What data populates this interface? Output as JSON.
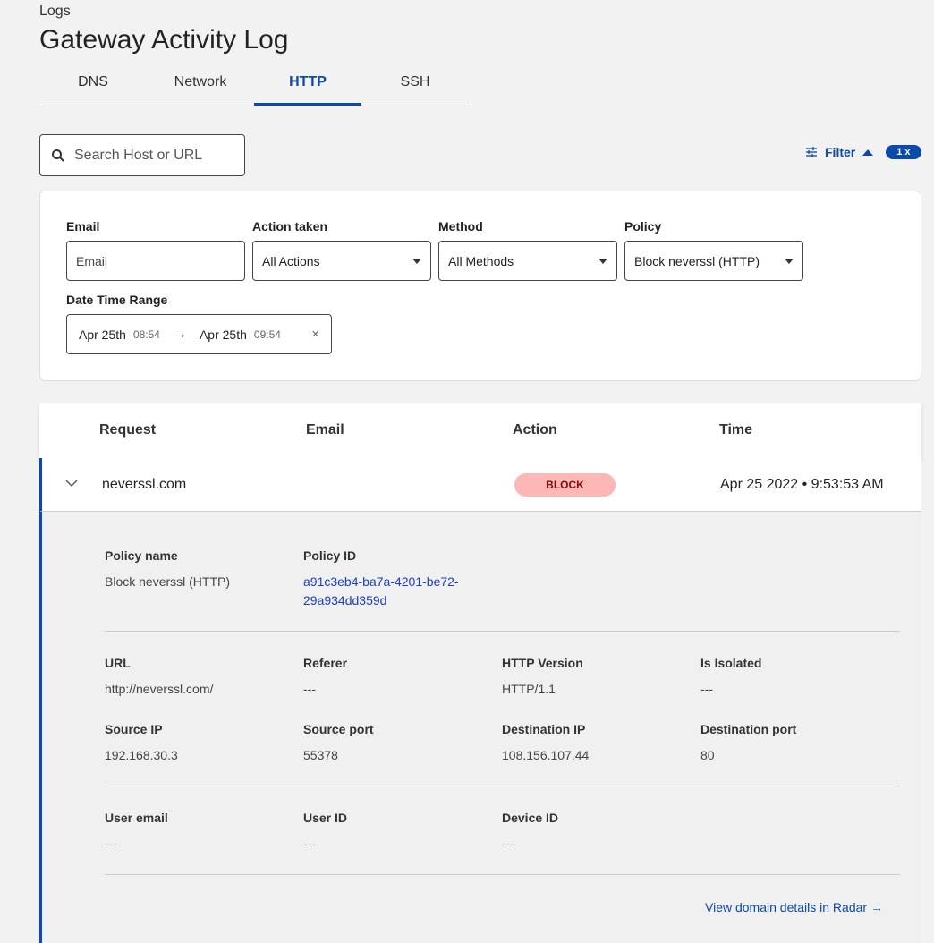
{
  "breadcrumb": "Logs",
  "title": "Gateway Activity Log",
  "tabs": [
    {
      "label": "DNS"
    },
    {
      "label": "Network"
    },
    {
      "label": "HTTP",
      "active": true
    },
    {
      "label": "SSH"
    }
  ],
  "search": {
    "placeholder": "Search Host or URL"
  },
  "filter": {
    "label": "Filter",
    "count": "1 x"
  },
  "filters": {
    "email": {
      "label": "Email",
      "placeholder": "Email"
    },
    "action": {
      "label": "Action taken",
      "value": "All Actions"
    },
    "method": {
      "label": "Method",
      "value": "All Methods"
    },
    "policy": {
      "label": "Policy",
      "value": "Block neverssl (HTTP)"
    },
    "date": {
      "label": "Date Time Range",
      "start_date": "Apr 25th",
      "start_time": "08:54",
      "end_date": "Apr 25th",
      "end_time": "09:54"
    }
  },
  "table": {
    "headers": [
      "Request",
      "Email",
      "Action",
      "Time"
    ],
    "row": {
      "request": "neverssl.com",
      "email": "",
      "action": "BLOCK",
      "time": "Apr 25 2022 • 9:53:53 AM"
    }
  },
  "detail": {
    "policy_name": {
      "label": "Policy name",
      "value": "Block neverssl (HTTP)"
    },
    "policy_id": {
      "label": "Policy ID",
      "value1": "a91c3eb4-ba7a-4201-be72-",
      "value2": "29a934dd359d"
    },
    "url": {
      "label": "URL",
      "value": "http://neverssl.com/"
    },
    "referer": {
      "label": "Referer",
      "value": "---"
    },
    "http_version": {
      "label": "HTTP Version",
      "value": "HTTP/1.1"
    },
    "is_isolated": {
      "label": "Is Isolated",
      "value": "---"
    },
    "source_ip": {
      "label": "Source IP",
      "value": "192.168.30.3"
    },
    "source_port": {
      "label": "Source port",
      "value": "55378"
    },
    "dest_ip": {
      "label": "Destination IP",
      "value": "108.156.107.44"
    },
    "dest_port": {
      "label": "Destination port",
      "value": "80"
    },
    "user_email": {
      "label": "User email",
      "value": "---"
    },
    "user_id": {
      "label": "User ID",
      "value": "---"
    },
    "device_id": {
      "label": "Device ID",
      "value": "---"
    },
    "radar_link": "View domain details in Radar →"
  },
  "colors": {
    "accent": "#0b4aab",
    "block_bg": "#fdb8b5",
    "block_text": "#7a0f0f"
  }
}
